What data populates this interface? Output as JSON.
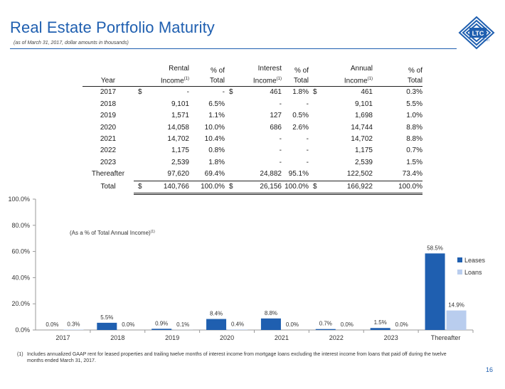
{
  "header": {
    "title": "Real Estate Portfolio Maturity",
    "subtitle": "(as of March 31, 2017, dollar amounts in thousands)",
    "logo_text": "LTC",
    "logo_sub": "REIT"
  },
  "table": {
    "headers": {
      "year": "Year",
      "rental_1": "Rental",
      "rental_2": "Income",
      "rental_sup": "(1)",
      "pct_1": "% of",
      "pct_2": "Total",
      "interest_1": "Interest",
      "interest_2": "Income",
      "interest_sup": "(1)",
      "annual_1": "Annual",
      "annual_2": "Income",
      "annual_sup": "(1)"
    },
    "rows": [
      {
        "year": "2017",
        "rent_dollar": "$",
        "rental": "-",
        "rental_pct": "-",
        "int_dollar": "$",
        "interest": "461",
        "interest_pct": "1.8%",
        "ann_dollar": "$",
        "annual": "461",
        "annual_pct": "0.3%"
      },
      {
        "year": "2018",
        "rent_dollar": "",
        "rental": "9,101",
        "rental_pct": "6.5%",
        "int_dollar": "",
        "interest": "-",
        "interest_pct": "-",
        "ann_dollar": "",
        "annual": "9,101",
        "annual_pct": "5.5%"
      },
      {
        "year": "2019",
        "rent_dollar": "",
        "rental": "1,571",
        "rental_pct": "1.1%",
        "int_dollar": "",
        "interest": "127",
        "interest_pct": "0.5%",
        "ann_dollar": "",
        "annual": "1,698",
        "annual_pct": "1.0%"
      },
      {
        "year": "2020",
        "rent_dollar": "",
        "rental": "14,058",
        "rental_pct": "10.0%",
        "int_dollar": "",
        "interest": "686",
        "interest_pct": "2.6%",
        "ann_dollar": "",
        "annual": "14,744",
        "annual_pct": "8.8%"
      },
      {
        "year": "2021",
        "rent_dollar": "",
        "rental": "14,702",
        "rental_pct": "10.4%",
        "int_dollar": "",
        "interest": "-",
        "interest_pct": "-",
        "ann_dollar": "",
        "annual": "14,702",
        "annual_pct": "8.8%"
      },
      {
        "year": "2022",
        "rent_dollar": "",
        "rental": "1,175",
        "rental_pct": "0.8%",
        "int_dollar": "",
        "interest": "-",
        "interest_pct": "-",
        "ann_dollar": "",
        "annual": "1,175",
        "annual_pct": "0.7%"
      },
      {
        "year": "2023",
        "rent_dollar": "",
        "rental": "2,539",
        "rental_pct": "1.8%",
        "int_dollar": "",
        "interest": "-",
        "interest_pct": "-",
        "ann_dollar": "",
        "annual": "2,539",
        "annual_pct": "1.5%"
      },
      {
        "year": "Thereafter",
        "rent_dollar": "",
        "rental": "97,620",
        "rental_pct": "69.4%",
        "int_dollar": "",
        "interest": "24,882",
        "interest_pct": "95.1%",
        "ann_dollar": "",
        "annual": "122,502",
        "annual_pct": "73.4%"
      }
    ],
    "total": {
      "year": "Total",
      "rent_dollar": "$",
      "rental": "140,766",
      "rental_pct": "100.0%",
      "int_dollar": "$",
      "interest": "26,156",
      "interest_pct": "100.0%",
      "ann_dollar": "$",
      "annual": "166,922",
      "annual_pct": "100.0%"
    }
  },
  "chart_data": {
    "type": "bar",
    "annotation": "(As a % of Total Annual Income)",
    "annotation_sup": "(1)",
    "categories": [
      "2017",
      "2018",
      "2019",
      "2020",
      "2021",
      "2022",
      "2023",
      "Thereafter"
    ],
    "series": [
      {
        "name": "Leases",
        "color": "#1f5fb0",
        "values": [
          0.0,
          5.5,
          0.9,
          8.4,
          8.8,
          0.7,
          1.5,
          58.5
        ],
        "labels": [
          "0.0%",
          "5.5%",
          "0.9%",
          "8.4%",
          "8.8%",
          "0.7%",
          "1.5%",
          "58.5%"
        ]
      },
      {
        "name": "Loans",
        "color": "#b9cdee",
        "values": [
          0.3,
          0.0,
          0.1,
          0.4,
          0.0,
          0.0,
          0.0,
          14.9
        ],
        "labels": [
          "0.3%",
          "0.0%",
          "0.1%",
          "0.4%",
          "0.0%",
          "0.0%",
          "0.0%",
          "14.9%"
        ]
      }
    ],
    "ylim": [
      0,
      100
    ],
    "yticks": [
      "0.0%",
      "20.0%",
      "40.0%",
      "60.0%",
      "80.0%",
      "100.0%"
    ],
    "legend_position": "right",
    "grid": false
  },
  "footnote": {
    "num": "(1)",
    "text": "Includes annualized GAAP rent for leased properties and trailing twelve months of interest income from mortgage loans excluding the interest income from loans that paid off during the twelve months ended March 31, 2017."
  },
  "page_number": "16",
  "colors": {
    "brand": "#1f5fb0",
    "loans": "#b9cdee"
  }
}
